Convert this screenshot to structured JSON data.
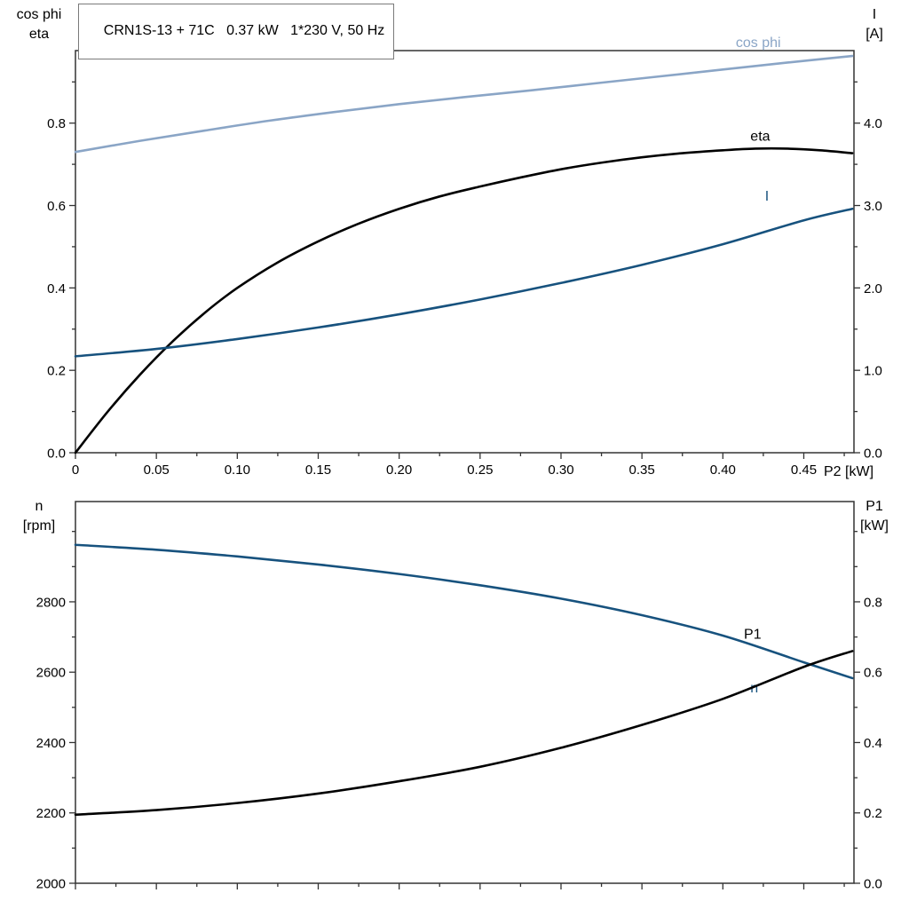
{
  "title": "CRN1S-13 + 71C   0.37 kW   1*230 V, 50 Hz",
  "labels": {
    "top_left": [
      "cos phi",
      "eta"
    ],
    "top_right": [
      "I",
      "[A]"
    ],
    "x_axis": "P2 [kW]",
    "bottom_left": [
      "n",
      "[rpm]"
    ],
    "bottom_right": [
      "P1",
      "[kW]"
    ]
  },
  "colors": {
    "light_blue": "#8AA5C6",
    "dark_blue": "#17527E",
    "black": "#000000",
    "frame": "#333333"
  },
  "chart_data": [
    {
      "type": "line",
      "title": "CRN1S-13 + 71C   0.37 kW   1*230 V, 50 Hz",
      "x": {
        "label": "P2 [kW]",
        "min": 0,
        "max": 0.481,
        "minor_step": 0.025,
        "ticks": [
          0,
          0.05,
          0.1,
          0.15,
          0.2,
          0.25,
          0.3,
          0.35,
          0.4,
          0.45
        ],
        "tick_labels": [
          "0",
          "0.05",
          "0.10",
          "0.15",
          "0.20",
          "0.25",
          "0.30",
          "0.35",
          "0.40",
          "0.45"
        ]
      },
      "y_left": {
        "label": "cos phi / eta",
        "min": 0,
        "max": 0.976,
        "minor_step": 0.1,
        "ticks": [
          0,
          0.2,
          0.4,
          0.6,
          0.8
        ],
        "tick_labels": [
          "0.0",
          "0.2",
          "0.4",
          "0.6",
          "0.8"
        ]
      },
      "y_right": {
        "label": "I [A]",
        "min": 0,
        "max": 4.88,
        "minor_step": 0.5,
        "ticks": [
          0,
          1,
          2,
          3,
          4
        ],
        "tick_labels": [
          "0.0",
          "1.0",
          "2.0",
          "3.0",
          "4.0"
        ]
      },
      "series": [
        {
          "name": "cos phi",
          "axis": "left",
          "color": "#8AA5C6",
          "label_at": [
            0.408,
            0.985
          ],
          "points": [
            [
              0,
              0.73
            ],
            [
              0.04,
              0.757
            ],
            [
              0.08,
              0.782
            ],
            [
              0.12,
              0.806
            ],
            [
              0.16,
              0.827
            ],
            [
              0.2,
              0.846
            ],
            [
              0.24,
              0.863
            ],
            [
              0.28,
              0.879
            ],
            [
              0.32,
              0.896
            ],
            [
              0.36,
              0.913
            ],
            [
              0.4,
              0.93
            ],
            [
              0.44,
              0.947
            ],
            [
              0.48,
              0.963
            ]
          ]
        },
        {
          "name": "eta",
          "axis": "left",
          "color": "#000000",
          "label_at": [
            0.417,
            0.757
          ],
          "points": [
            [
              0,
              0
            ],
            [
              0.02,
              0.1
            ],
            [
              0.04,
              0.19
            ],
            [
              0.06,
              0.27
            ],
            [
              0.08,
              0.34
            ],
            [
              0.1,
              0.4
            ],
            [
              0.125,
              0.462
            ],
            [
              0.15,
              0.513
            ],
            [
              0.175,
              0.556
            ],
            [
              0.2,
              0.592
            ],
            [
              0.225,
              0.622
            ],
            [
              0.25,
              0.646
            ],
            [
              0.275,
              0.668
            ],
            [
              0.3,
              0.688
            ],
            [
              0.325,
              0.704
            ],
            [
              0.35,
              0.717
            ],
            [
              0.375,
              0.727
            ],
            [
              0.4,
              0.734
            ],
            [
              0.42,
              0.738
            ],
            [
              0.44,
              0.738
            ],
            [
              0.46,
              0.734
            ],
            [
              0.48,
              0.727
            ]
          ]
        },
        {
          "name": "I",
          "axis": "right",
          "color": "#17527E",
          "label_at": [
            0.426,
            3.06
          ],
          "points": [
            [
              0,
              1.17
            ],
            [
              0.05,
              1.26
            ],
            [
              0.1,
              1.38
            ],
            [
              0.15,
              1.52
            ],
            [
              0.2,
              1.68
            ],
            [
              0.25,
              1.86
            ],
            [
              0.3,
              2.06
            ],
            [
              0.35,
              2.28
            ],
            [
              0.4,
              2.53
            ],
            [
              0.45,
              2.82
            ],
            [
              0.48,
              2.96
            ]
          ]
        }
      ]
    },
    {
      "type": "line",
      "x": {
        "label": "",
        "min": 0,
        "max": 0.481,
        "minor_step": 0.025,
        "ticks": [
          0,
          0.05,
          0.1,
          0.15,
          0.2,
          0.25,
          0.3,
          0.35,
          0.4,
          0.45
        ],
        "tick_labels": null
      },
      "y_left": {
        "label": "n [rpm]",
        "min": 2000,
        "max": 3085,
        "minor_step": 100,
        "ticks": [
          2000,
          2200,
          2400,
          2600,
          2800
        ],
        "tick_labels": [
          "2000",
          "2200",
          "2400",
          "2600",
          "2800"
        ]
      },
      "y_right": {
        "label": "P1 [kW]",
        "min": 0,
        "max": 1.085,
        "minor_step": 0.1,
        "ticks": [
          0,
          0.2,
          0.4,
          0.6,
          0.8
        ],
        "tick_labels": [
          "0.0",
          "0.2",
          "0.4",
          "0.6",
          "0.8"
        ]
      },
      "series": [
        {
          "name": "n",
          "axis": "left",
          "color": "#17527E",
          "label_at": [
            0.417,
            2542
          ],
          "points": [
            [
              0,
              2962
            ],
            [
              0.05,
              2948
            ],
            [
              0.1,
              2929
            ],
            [
              0.15,
              2906
            ],
            [
              0.2,
              2879
            ],
            [
              0.25,
              2847
            ],
            [
              0.3,
              2809
            ],
            [
              0.35,
              2762
            ],
            [
              0.4,
              2704
            ],
            [
              0.45,
              2628
            ],
            [
              0.48,
              2583
            ]
          ]
        },
        {
          "name": "P1",
          "axis": "right",
          "color": "#000000",
          "label_at": [
            0.413,
            0.695
          ],
          "points": [
            [
              0,
              0.195
            ],
            [
              0.05,
              0.208
            ],
            [
              0.1,
              0.228
            ],
            [
              0.15,
              0.255
            ],
            [
              0.2,
              0.29
            ],
            [
              0.25,
              0.331
            ],
            [
              0.3,
              0.385
            ],
            [
              0.35,
              0.45
            ],
            [
              0.4,
              0.524
            ],
            [
              0.45,
              0.615
            ],
            [
              0.48,
              0.66
            ]
          ]
        }
      ]
    }
  ]
}
